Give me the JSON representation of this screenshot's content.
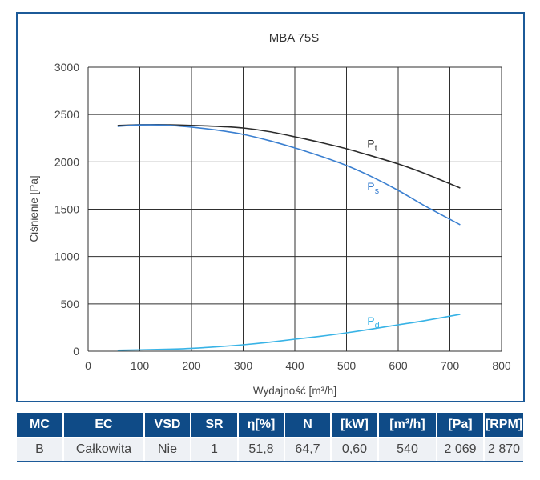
{
  "chart_data": {
    "type": "line",
    "title": "MBA 75S",
    "xlabel": "Wydajność [m³/h]",
    "ylabel": "Ciśnienie [Pa]",
    "xlim": [
      0,
      800
    ],
    "ylim": [
      0,
      3000
    ],
    "xticks": [
      0,
      100,
      200,
      300,
      400,
      500,
      600,
      700,
      800
    ],
    "yticks": [
      0,
      500,
      1000,
      1500,
      2000,
      2500,
      3000
    ],
    "xtick_labels": [
      "0",
      "100",
      "200",
      "300",
      "400",
      "500",
      "600",
      "700",
      "800"
    ],
    "ytick_labels": [
      "0",
      "500",
      "1000",
      "1500",
      "2000",
      "2500",
      "3000"
    ],
    "grid": true,
    "series": [
      {
        "name": "Pt",
        "label_main": "P",
        "label_sub": "t",
        "color": "#2b2b2b",
        "label_at": [
          540,
          2150
        ],
        "x": [
          57,
          100,
          150,
          200,
          250,
          300,
          350,
          400,
          450,
          500,
          550,
          600,
          650,
          720
        ],
        "y": [
          2384,
          2392,
          2392,
          2385,
          2375,
          2358,
          2320,
          2265,
          2205,
          2138,
          2060,
          1978,
          1880,
          1724
        ]
      },
      {
        "name": "Ps",
        "label_main": "P",
        "label_sub": "s",
        "color": "#3a7fd0",
        "label_at": [
          540,
          1700
        ],
        "x": [
          57,
          100,
          150,
          200,
          250,
          300,
          350,
          400,
          450,
          500,
          550,
          600,
          650,
          720
        ],
        "y": [
          2375,
          2390,
          2388,
          2367,
          2335,
          2290,
          2225,
          2147,
          2060,
          1961,
          1840,
          1699,
          1540,
          1336
        ]
      },
      {
        "name": "Pd",
        "label_main": "P",
        "label_sub": "d",
        "color": "#38b3e6",
        "label_at": [
          540,
          280
        ],
        "x": [
          57,
          100,
          150,
          200,
          250,
          300,
          350,
          400,
          450,
          500,
          550,
          600,
          650,
          720
        ],
        "y": [
          10,
          14,
          20,
          30,
          47,
          68,
          95,
          127,
          158,
          194,
          235,
          279,
          322,
          390
        ]
      }
    ]
  },
  "table": {
    "headers": [
      "MC",
      "EC",
      "VSD",
      "SR",
      "η[%]",
      "N",
      "[kW]",
      "[m³/h]",
      "[Pa]",
      "[RPM]"
    ],
    "row": [
      "B",
      "Całkowita",
      "Nie",
      "1",
      "51,8",
      "64,7",
      "0,60",
      "540",
      "2 069",
      "2 870"
    ]
  },
  "colors": {
    "frame": "#1c5a98",
    "header_bg": "#0f4b87",
    "row_bg": "#eef1f5",
    "grid": "#2f2f2f"
  }
}
